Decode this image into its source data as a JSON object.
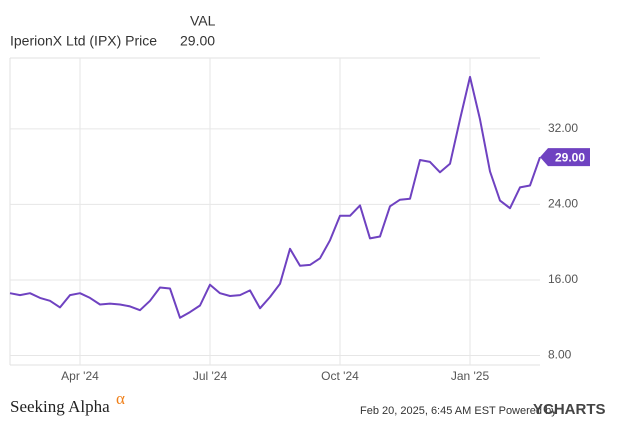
{
  "chart_data": {
    "type": "line",
    "header": "VAL",
    "footer_left": "Seeking Alpha",
    "footer_logo_mark": "α",
    "footer_timestamp": "Feb 20, 2025, 6:45 AM EST Powered by",
    "footer_brand": "YCHARTS",
    "categories": [
      null,
      null,
      null,
      null,
      null,
      null,
      null,
      "Apr '24",
      null,
      null,
      null,
      null,
      null,
      null,
      null,
      null,
      null,
      null,
      null,
      null,
      "Jul '24",
      null,
      null,
      null,
      null,
      null,
      null,
      null,
      null,
      null,
      null,
      null,
      null,
      "Oct '24",
      null,
      null,
      null,
      null,
      null,
      null,
      null,
      null,
      null,
      null,
      null,
      null,
      "Jan '25",
      null,
      null,
      null,
      null,
      null,
      null,
      null
    ],
    "series": [
      {
        "name": "IperionX Ltd (IPX) Price",
        "color": "#6f42c1",
        "values": [
          14.6,
          14.4,
          14.6,
          14.1,
          13.8,
          13.1,
          14.4,
          14.6,
          14.1,
          13.4,
          13.5,
          13.4,
          13.2,
          12.8,
          13.8,
          15.2,
          15.1,
          12.0,
          12.6,
          13.3,
          15.5,
          14.6,
          14.3,
          14.4,
          14.9,
          13.0,
          14.2,
          15.6,
          19.3,
          17.5,
          17.6,
          18.3,
          20.2,
          22.8,
          22.8,
          23.9,
          20.4,
          20.6,
          23.8,
          24.5,
          24.6,
          28.7,
          28.5,
          27.4,
          28.3,
          33.0,
          37.5,
          33.0,
          27.5,
          24.4,
          23.6,
          25.8,
          26.0,
          29.0
        ],
        "end_label": "29.00"
      }
    ],
    "ylim": [
      7,
      39.5
    ],
    "yticks": [
      {
        "value": 8,
        "label": "8.00"
      },
      {
        "value": 16,
        "label": "16.00"
      },
      {
        "value": 24,
        "label": "24.00"
      },
      {
        "value": 32,
        "label": "32.00"
      }
    ],
    "grid": true
  }
}
